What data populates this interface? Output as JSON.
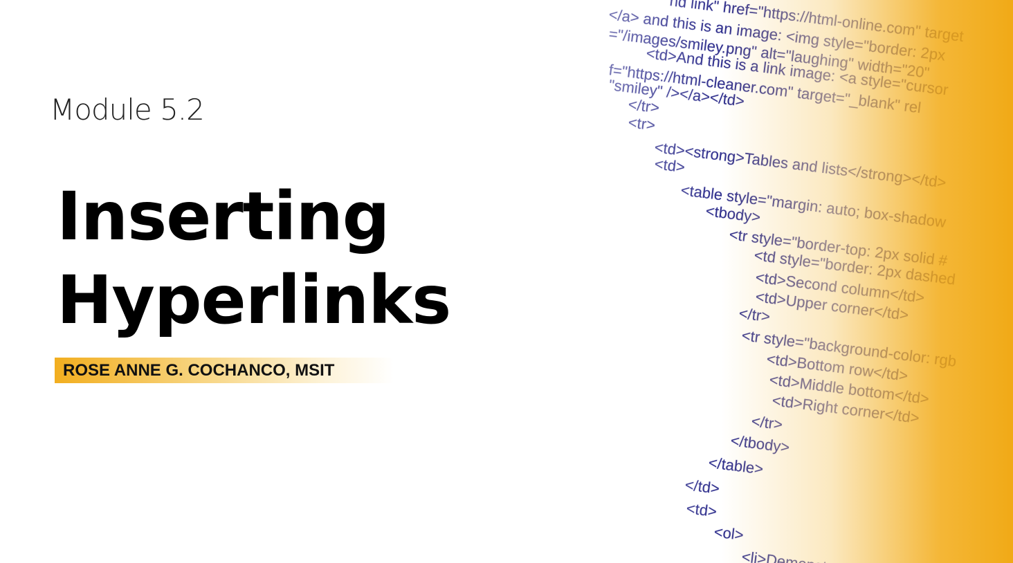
{
  "slide": {
    "module": "Module 5.2",
    "title_lines": [
      "Inserting",
      "Hyperlinks"
    ],
    "author": "ROSE ANNE G. COCHANCO, MSIT"
  },
  "image": {
    "code_lines": [
      "nd link\" href=\"https://html-online.com\" target",
      "</a> and this is an image: <img style=\"border: 2px",
      "=\"/images/smiley.png\" alt=\"laughing\" width=\"20\"",
      "<td>And this is a link image: <a style=\"cursor",
      "f=\"https://html-cleaner.com\" target=\"_blank\" rel",
      "\"smiley\" /></a></td>",
      "</tr>",
      "<tr>",
      "<td><strong>Tables and lists</strong></td>",
      "<td>",
      "<table style=\"margin: auto; box-shadow",
      "<tbody>",
      "<tr style=\"border-top: 2px solid #",
      "<td style=\"border: 2px dashed",
      "<td>Second column</td>",
      "<td>Upper corner</td>",
      "</tr>",
      "<tr style=\"background-color: rgb",
      "<td>Bottom row</td>",
      "<td>Middle bottom</td>",
      "<td>Right corner</td>",
      "</tr>",
      "</tbody>",
      "</table>",
      "</td>",
      "<td>",
      "<ol>",
      "<li>Demonstrating an ordered"
    ]
  }
}
